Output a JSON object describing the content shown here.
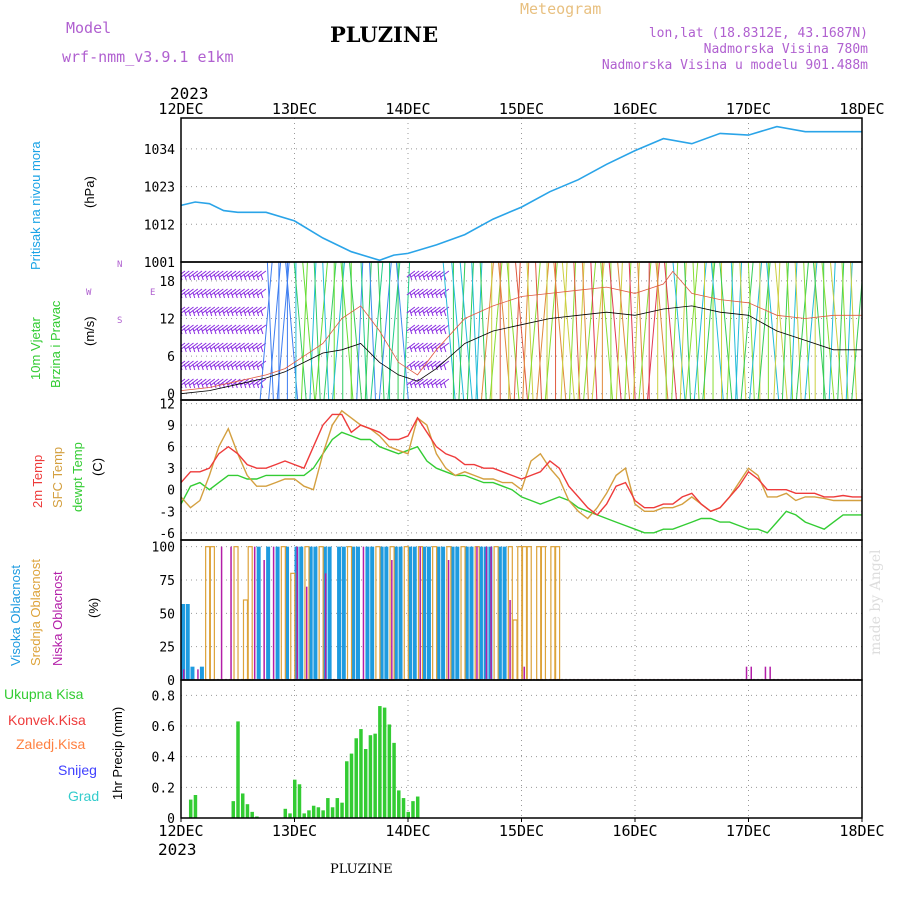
{
  "header": {
    "model_label": "Model",
    "model_name": "wrf-nmm_v3.9.1  e1km",
    "station": "PLUZINE",
    "product": "Meteogram",
    "lonlat": "lon,lat (18.8312E, 43.1687N)",
    "elevation": "Nadmorska Visina 780m",
    "model_elevation": "Nadmorska Visina u modelu 901.488m",
    "footer_station": "PLUZINE",
    "credit": "made by Angel"
  },
  "colors": {
    "pressure": "#2aa4e8",
    "t2m": "#ee3b3b",
    "tsfc": "#d4a040",
    "dew": "#33cc33",
    "high": "#1e9be0",
    "mid": "#dda33a",
    "low": "#b31ea8",
    "precip": "#33cc33"
  },
  "chart_data": {
    "type": "meteogram",
    "x_axis": {
      "year": "2023",
      "ticks": [
        "12DEC",
        "13DEC",
        "14DEC",
        "15DEC",
        "16DEC",
        "17DEC",
        "18DEC"
      ],
      "range_hours": [
        0,
        144
      ]
    },
    "panels": [
      {
        "id": "pressure",
        "labels": [
          "Pritisak na nivou mora",
          "(hPa)"
        ],
        "ylim": [
          1001,
          1043
        ],
        "yticks": [
          1001,
          1012,
          1023,
          1034
        ]
      },
      {
        "id": "wind",
        "labels": [
          "10m Vjetar",
          "Brzina i Pravac",
          "(m/s)"
        ],
        "compass": [
          "N",
          "S",
          "W",
          "E"
        ],
        "ylim": [
          -1,
          21
        ],
        "yticks": [
          0,
          6,
          12,
          18
        ]
      },
      {
        "id": "temp",
        "labels": [
          "2m Temp",
          "SFC Temp",
          "dewpt Temp",
          "(C)"
        ],
        "ylim": [
          -7,
          12.5
        ],
        "yticks": [
          -6,
          -3,
          0,
          3,
          6,
          9,
          12
        ]
      },
      {
        "id": "cloud",
        "labels": [
          "Visoka Oblacnost",
          "Srednja Oblacnost",
          "Niska Oblacnost",
          "(%)"
        ],
        "ylim": [
          0,
          105
        ],
        "yticks": [
          0,
          25,
          50,
          75,
          100
        ]
      },
      {
        "id": "precip",
        "labels": [
          "Ukupna Kisa",
          "Konvek.Kisa",
          "Zaledj.Kisa",
          "Snijeg",
          "Grad",
          "1hr Precip (mm)"
        ],
        "ylim": [
          0,
          0.9
        ],
        "yticks": [
          0,
          0.2,
          0.4,
          0.6,
          0.8
        ]
      }
    ],
    "pressure": {
      "x": [
        0,
        3,
        6,
        9,
        12,
        18,
        24,
        30,
        36,
        42,
        45,
        48,
        54,
        60,
        66,
        72,
        78,
        84,
        90,
        96,
        102,
        108,
        114,
        120,
        126,
        132,
        138,
        144
      ],
      "y": [
        1017.5,
        1018.5,
        1018,
        1016,
        1015.5,
        1015.5,
        1013,
        1008,
        1004,
        1001.5,
        1003,
        1003.5,
        1006,
        1009,
        1013.5,
        1017,
        1021.5,
        1025,
        1029.5,
        1033.5,
        1037,
        1035.5,
        1038.5,
        1038,
        1040.5,
        1039,
        1039,
        1039
      ]
    },
    "wind_speed": {
      "x": [
        0,
        6,
        12,
        18,
        22,
        26,
        30,
        34,
        38,
        42,
        46,
        50,
        54,
        60,
        66,
        72,
        78,
        84,
        90,
        96,
        102,
        108,
        114,
        120,
        126,
        132,
        138,
        144
      ],
      "y": [
        0,
        0.5,
        1.5,
        2.5,
        3.5,
        5,
        6.5,
        7,
        8,
        5,
        3,
        2,
        4,
        8,
        10,
        11,
        12,
        12.5,
        13,
        12.5,
        13.5,
        14,
        13,
        12.5,
        10,
        8.5,
        7,
        7
      ]
    },
    "wind_gust": {
      "x": [
        0,
        6,
        12,
        18,
        22,
        26,
        30,
        34,
        38,
        42,
        46,
        50,
        54,
        60,
        66,
        72,
        78,
        84,
        90,
        96,
        102,
        104,
        108,
        114,
        120,
        126,
        132,
        138,
        144
      ],
      "y": [
        0.5,
        1,
        2,
        3,
        4,
        6,
        8,
        12,
        14,
        10,
        5,
        3,
        7,
        12,
        14,
        15.5,
        16,
        16.5,
        17,
        16,
        17.5,
        19.5,
        16,
        15,
        14.5,
        12.5,
        12,
        12.5,
        12.5
      ]
    },
    "temperature": {
      "x": [
        0,
        2,
        4,
        6,
        8,
        10,
        12,
        14,
        16,
        18,
        20,
        22,
        24,
        26,
        28,
        30,
        32,
        34,
        36,
        38,
        40,
        42,
        44,
        46,
        48,
        50,
        52,
        54,
        56,
        58,
        60,
        62,
        64,
        66,
        68,
        70,
        72,
        74,
        76,
        78,
        80,
        82,
        84,
        86,
        88,
        90,
        92,
        94,
        96,
        98,
        100,
        102,
        104,
        106,
        108,
        110,
        112,
        114,
        116,
        118,
        120,
        122,
        124,
        126,
        128,
        130,
        132,
        134,
        136,
        138,
        140,
        142,
        144
      ],
      "t2m": [
        1,
        2.5,
        2.5,
        3,
        5,
        6,
        5,
        3.5,
        3,
        3,
        3.5,
        4,
        3.5,
        3,
        6,
        9,
        10.5,
        10.5,
        8,
        9,
        8.5,
        8,
        7,
        7,
        7.5,
        10,
        8,
        6,
        5,
        4.5,
        3.5,
        3.5,
        3,
        3,
        2.5,
        2,
        1.5,
        2,
        2.5,
        4,
        3,
        0.5,
        -1,
        -2.5,
        -3.5,
        -2,
        0.5,
        1,
        -1.5,
        -2.5,
        -2.5,
        -2,
        -2,
        -1,
        -0.5,
        -2,
        -3,
        -2.5,
        -1,
        0.5,
        2.5,
        1.5,
        0,
        0,
        0,
        -0.5,
        -0.5,
        -0.5,
        -1,
        -1,
        -0.8,
        -1,
        -1
      ],
      "tsfc": [
        -1,
        -2.5,
        -1.5,
        2,
        6,
        8.5,
        5,
        2,
        0.5,
        0.5,
        1,
        1.5,
        1.5,
        0.5,
        0,
        5,
        9,
        11,
        10,
        9,
        8.5,
        7.5,
        6,
        5.5,
        5,
        10,
        9,
        5,
        3,
        2,
        2.5,
        2,
        1.5,
        1.5,
        1,
        1,
        0,
        4,
        5,
        3,
        1.5,
        -1.5,
        -3,
        -4,
        -2.5,
        -0.5,
        2,
        3,
        -2,
        -3,
        -3,
        -2.5,
        -2.5,
        -2,
        -1,
        -2,
        -3,
        -2.5,
        -1,
        1,
        3,
        2,
        -1,
        -1,
        -0.5,
        -1.5,
        -1,
        -1,
        -1.2,
        -1.5,
        -1.5,
        -1.5,
        -1.5
      ],
      "dewpoint": [
        -2,
        0.5,
        1,
        0,
        1,
        2,
        2,
        1.5,
        1.5,
        2,
        2,
        2,
        2,
        2,
        3,
        5,
        7,
        8,
        7.5,
        7,
        7,
        6,
        5.5,
        5,
        5.5,
        6,
        4,
        3,
        2.5,
        2,
        2,
        1.5,
        1,
        1,
        0.5,
        0,
        -1,
        -1.5,
        -2,
        -1.5,
        -1,
        -1.5,
        -2.5,
        -3,
        -3.5,
        -4,
        -4.5,
        -5,
        -5.5,
        -6,
        -6,
        -5.5,
        -5.5,
        -5,
        -4.5,
        -4,
        -4,
        -4.5,
        -4.5,
        -5,
        -5.5,
        -5.5,
        -6,
        -4.5,
        -3,
        -3.5,
        -4.5,
        -5,
        -5.5,
        -4.5,
        -3.5,
        -3.5,
        -3.5
      ]
    },
    "cloud_cover": {
      "high": [
        [
          0,
          57
        ],
        [
          1,
          57
        ],
        [
          2,
          10
        ],
        [
          4,
          10
        ],
        [
          16,
          100
        ],
        [
          18,
          100
        ],
        [
          20,
          100
        ],
        [
          22,
          100
        ],
        [
          24,
          100
        ],
        [
          25,
          100
        ],
        [
          27,
          100
        ],
        [
          28,
          100
        ],
        [
          30,
          100
        ],
        [
          31,
          100
        ],
        [
          33,
          100
        ],
        [
          34,
          100
        ],
        [
          36,
          100
        ],
        [
          37,
          100
        ],
        [
          39,
          100
        ],
        [
          40,
          100
        ],
        [
          42,
          100
        ],
        [
          43,
          100
        ],
        [
          45,
          100
        ],
        [
          46,
          100
        ],
        [
          48,
          100
        ],
        [
          49,
          100
        ],
        [
          51,
          100
        ],
        [
          52,
          100
        ],
        [
          54,
          100
        ],
        [
          55,
          100
        ],
        [
          57,
          100
        ],
        [
          58,
          100
        ],
        [
          60,
          100
        ],
        [
          61,
          100
        ],
        [
          63,
          100
        ],
        [
          64,
          100
        ],
        [
          65,
          100
        ],
        [
          67,
          100
        ],
        [
          68,
          100
        ]
      ],
      "mid": [
        [
          5,
          100
        ],
        [
          6,
          100
        ],
        [
          11,
          100
        ],
        [
          13,
          60
        ],
        [
          14,
          100
        ],
        [
          21,
          100
        ],
        [
          23,
          80
        ],
        [
          26,
          100
        ],
        [
          29,
          100
        ],
        [
          35,
          100
        ],
        [
          41,
          100
        ],
        [
          44,
          100
        ],
        [
          47,
          100
        ],
        [
          50,
          100
        ],
        [
          53,
          100
        ],
        [
          56,
          100
        ],
        [
          59,
          100
        ],
        [
          62,
          100
        ],
        [
          66,
          100
        ],
        [
          69,
          100
        ],
        [
          70,
          45
        ],
        [
          71,
          100
        ],
        [
          72,
          100
        ],
        [
          73,
          100
        ],
        [
          75,
          100
        ],
        [
          76,
          100
        ],
        [
          78,
          100
        ],
        [
          79,
          100
        ]
      ],
      "low": [
        [
          0,
          8
        ],
        [
          3,
          8
        ],
        [
          8,
          100
        ],
        [
          10,
          100
        ],
        [
          15,
          100
        ],
        [
          17,
          90
        ],
        [
          19,
          100
        ],
        [
          24,
          100
        ],
        [
          26,
          70
        ],
        [
          30,
          80
        ],
        [
          38,
          100
        ],
        [
          44,
          90
        ],
        [
          50,
          100
        ],
        [
          56,
          90
        ],
        [
          62,
          100
        ],
        [
          64,
          100
        ],
        [
          65,
          100
        ],
        [
          69,
          60
        ],
        [
          72,
          10
        ],
        [
          119,
          10
        ],
        [
          120,
          10
        ],
        [
          123,
          10
        ],
        [
          124,
          10
        ]
      ]
    },
    "precip_1hr": {
      "x": [
        2,
        3,
        11,
        12,
        13,
        14,
        15,
        16,
        22,
        23,
        24,
        25,
        26,
        27,
        28,
        29,
        30,
        31,
        32,
        33,
        34,
        35,
        36,
        37,
        38,
        39,
        40,
        41,
        42,
        43,
        44,
        45,
        46,
        47,
        48,
        49,
        50,
        51,
        52,
        53,
        54,
        55
      ],
      "y": [
        0.12,
        0.15,
        0.11,
        0.63,
        0.16,
        0.09,
        0.04,
        0.01,
        0.06,
        0.03,
        0.25,
        0.22,
        0.03,
        0.05,
        0.08,
        0.07,
        0.05,
        0.13,
        0.07,
        0.13,
        0.1,
        0.37,
        0.42,
        0.52,
        0.58,
        0.45,
        0.54,
        0.55,
        0.73,
        0.72,
        0.61,
        0.49,
        0.18,
        0.13,
        0.04,
        0.11,
        0.14,
        0.0,
        0.0,
        0.0,
        0.0,
        0.0
      ]
    }
  }
}
